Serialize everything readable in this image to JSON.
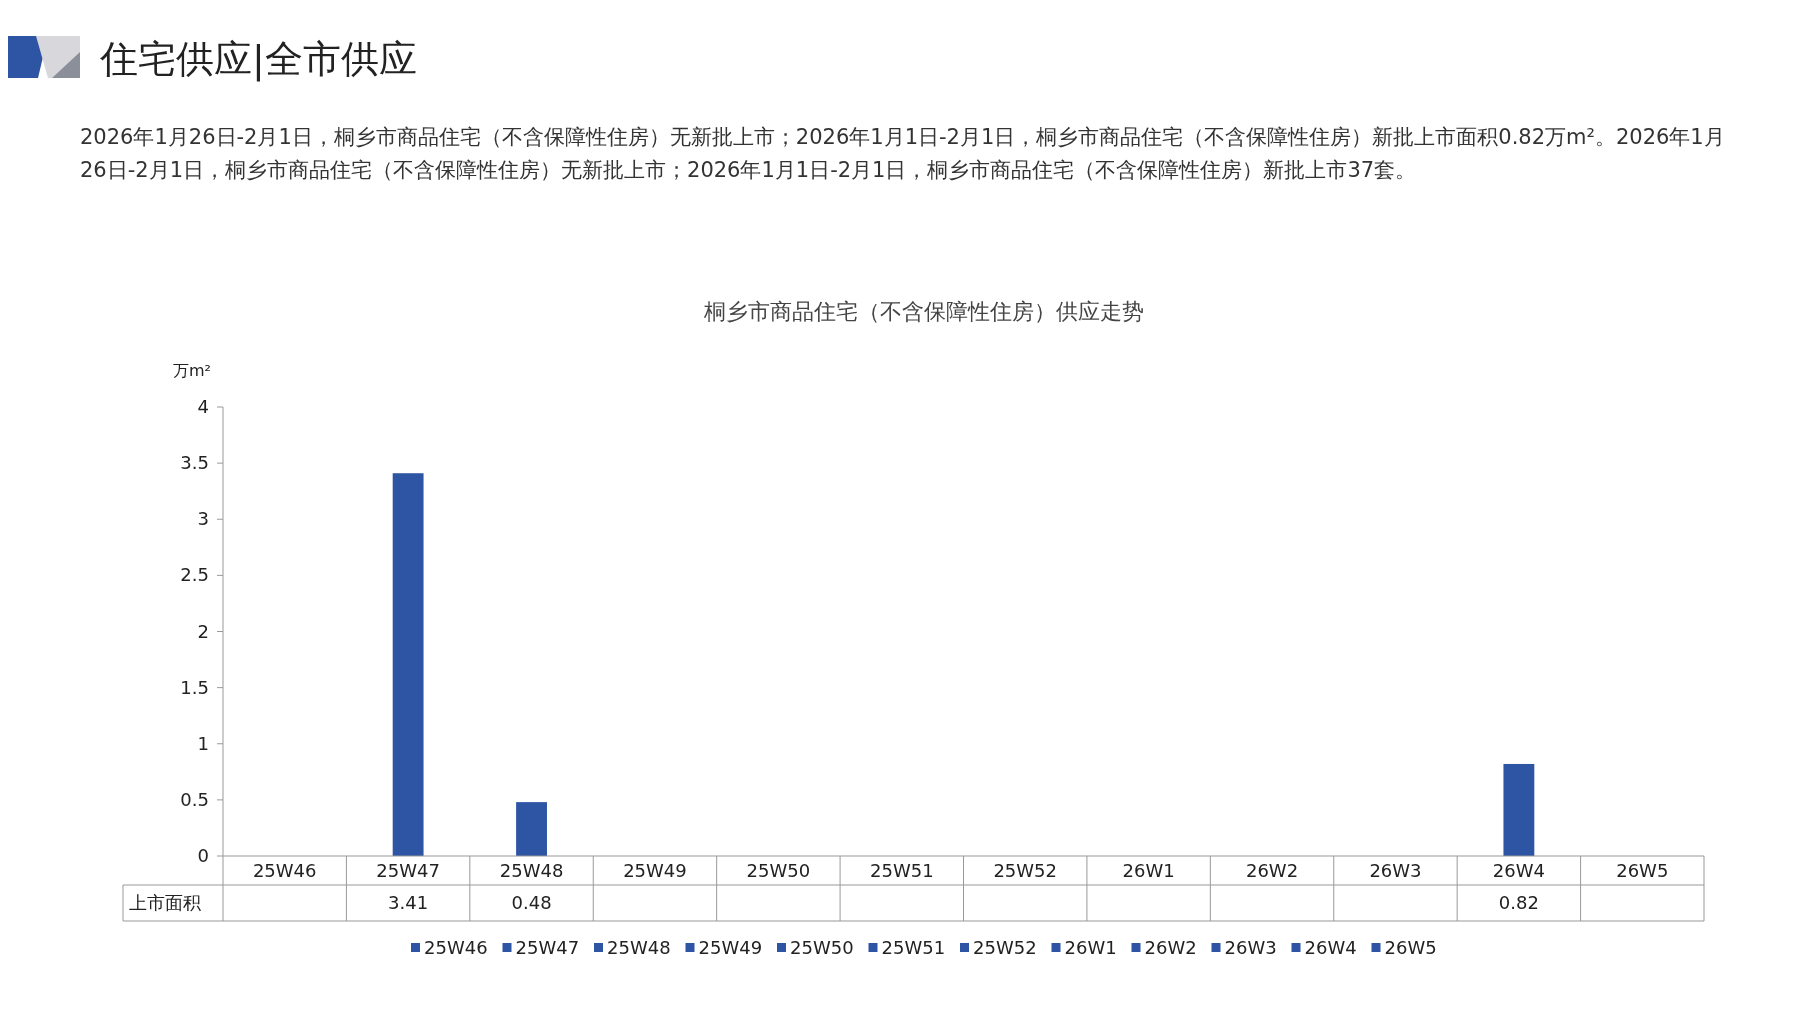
{
  "chart_data": {
    "type": "bar",
    "subtitle": "住宅供应|全市供应",
    "title": "桐乡市商品住宅（不含保障性住房）供应走势",
    "annotations": [
      "2026年1月26日-2月1日，桐乡市商品住宅（不含保障性住房）无新批上市；2026年1月1日-2月1日，桐乡市商品住宅（不含保障性住房）新批上市面积0.82万m²。2026年1月26日-2月1日，桐乡市商品住宅（不含保障性住房）无新批上市；2026年1月1日-2月1日，桐乡市商品住宅（不含保障性住房）新批上市37套。"
    ],
    "ylabel": "万m²",
    "categories": [
      "25W46",
      "25W47",
      "25W48",
      "25W49",
      "25W50",
      "25W51",
      "25W52",
      "26W1",
      "26W2",
      "26W3",
      "26W4",
      "26W5"
    ],
    "series": [
      {
        "name": "上市面积",
        "color": "#2e54a4",
        "values": [
          null,
          3.41,
          0.48,
          null,
          null,
          null,
          null,
          null,
          null,
          null,
          0.82,
          null
        ]
      }
    ],
    "ylim": [
      0,
      4
    ],
    "yticks": [
      0,
      0.5,
      1,
      1.5,
      2,
      2.5,
      3,
      3.5,
      4
    ],
    "data_labels": true,
    "legend": "bottom",
    "grid": false
  }
}
